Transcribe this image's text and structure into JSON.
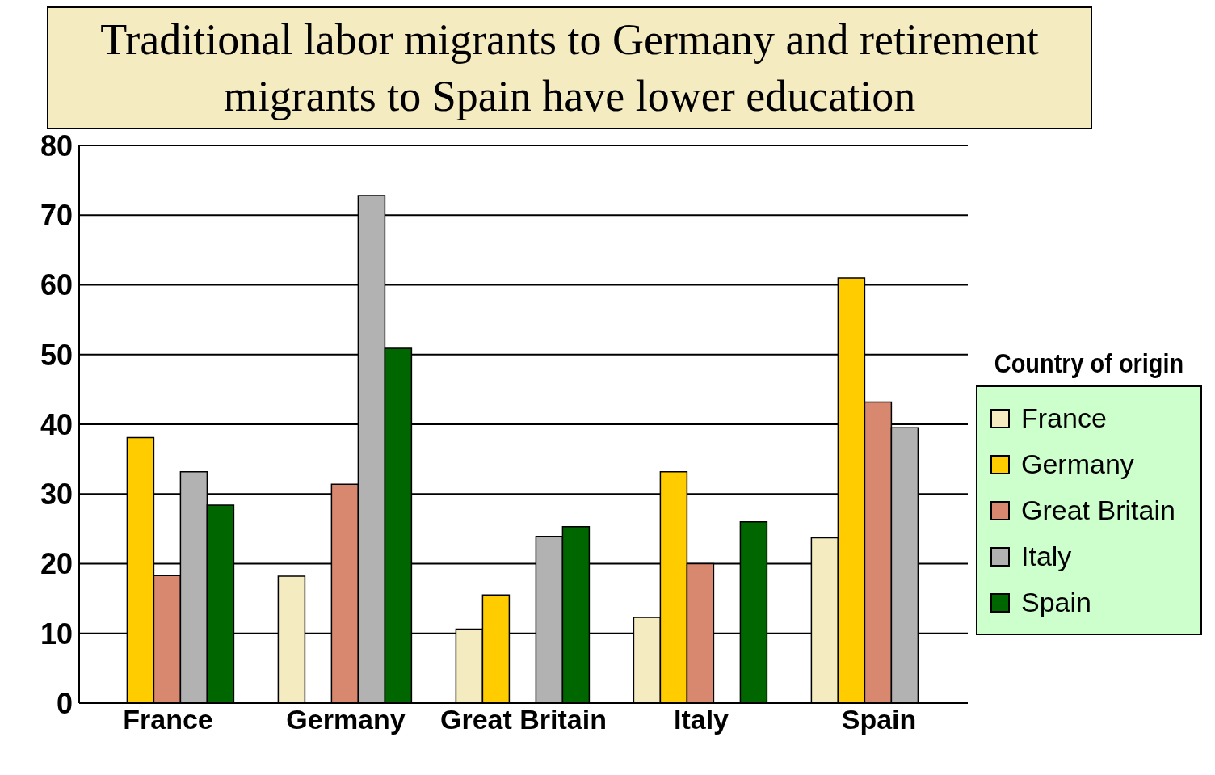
{
  "chart_data": {
    "type": "bar",
    "title": "Traditional labor migrants to Germany and retirement migrants to Spain have lower education",
    "categories": [
      "France",
      "Germany",
      "Great Britain",
      "Italy",
      "Spain"
    ],
    "series": [
      {
        "name": "France",
        "color": "#f5ebc0",
        "values": [
          null,
          18.2,
          10.6,
          12.3,
          23.7
        ]
      },
      {
        "name": "Germany",
        "color": "#ffcc00",
        "values": [
          38.1,
          null,
          15.5,
          33.2,
          61.0
        ]
      },
      {
        "name": "Great Britain",
        "color": "#d98870",
        "values": [
          18.3,
          31.4,
          null,
          20.0,
          43.2
        ]
      },
      {
        "name": "Italy",
        "color": "#b2b2b2",
        "values": [
          33.2,
          72.8,
          23.9,
          null,
          39.5
        ]
      },
      {
        "name": "Spain",
        "color": "#006600",
        "values": [
          28.4,
          50.9,
          25.3,
          26.0,
          null
        ]
      }
    ],
    "legend_title": "Country of origin",
    "ylim": [
      0,
      80
    ],
    "yticks": [
      0,
      10,
      20,
      30,
      40,
      50,
      60,
      70,
      80
    ],
    "grid": "y",
    "legend": "right"
  }
}
